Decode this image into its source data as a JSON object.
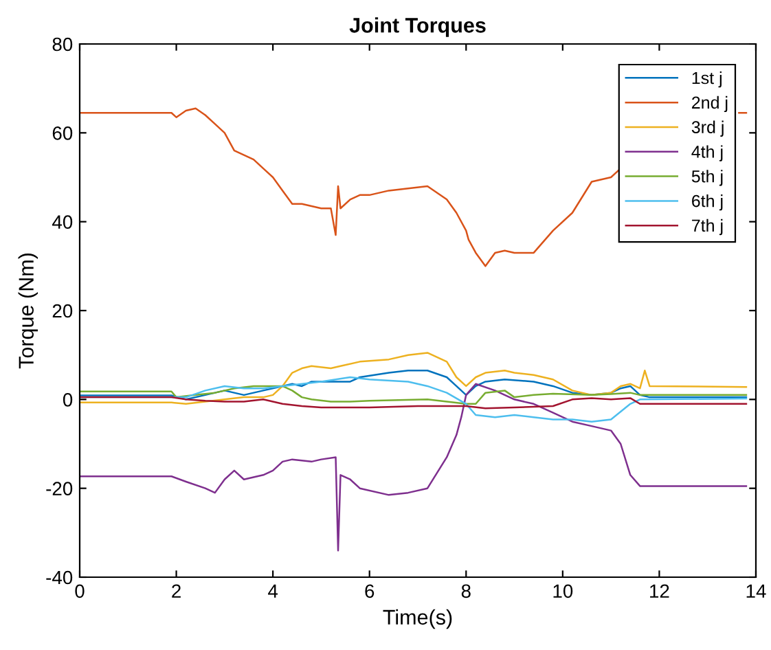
{
  "chart_data": {
    "type": "line",
    "title": "Joint Torques",
    "xlabel": "Time(s)",
    "ylabel": "Torque (Nm)",
    "xlim": [
      0,
      14
    ],
    "ylim": [
      -40,
      80
    ],
    "xticks": [
      0,
      2,
      4,
      6,
      8,
      10,
      12,
      14
    ],
    "yticks": [
      -40,
      -20,
      0,
      20,
      40,
      60,
      80
    ],
    "grid": false,
    "legend": "top right",
    "marker": "none",
    "line_style": "solid",
    "series": [
      {
        "name": "1st j",
        "color": "#0072bd",
        "x": [
          0,
          1.9,
          2.2,
          2.6,
          3.0,
          3.4,
          3.8,
          4.2,
          4.4,
          4.6,
          4.8,
          5.2,
          5.6,
          5.8,
          6.4,
          6.8,
          7.2,
          7.6,
          7.8,
          8.0,
          8.2,
          8.4,
          8.8,
          9.4,
          9.8,
          10.2,
          10.6,
          11.0,
          11.2,
          11.4,
          11.6,
          11.8,
          13.8
        ],
        "values": [
          0.9,
          0.9,
          0,
          1,
          2,
          1,
          2,
          3,
          3.5,
          3,
          4,
          4,
          4,
          5,
          6,
          6.5,
          6.5,
          5,
          3,
          1,
          3,
          4,
          4.5,
          4,
          3,
          1.5,
          1,
          1.5,
          2.5,
          3,
          1,
          0.5,
          0.5
        ]
      },
      {
        "name": "2nd j",
        "color": "#d95319",
        "x": [
          0,
          1.9,
          2.0,
          2.2,
          2.4,
          2.6,
          2.8,
          3.0,
          3.2,
          3.4,
          3.6,
          3.8,
          4.0,
          4.2,
          4.4,
          4.6,
          4.8,
          5.0,
          5.2,
          5.3,
          5.35,
          5.4,
          5.6,
          5.8,
          6.0,
          6.4,
          6.8,
          7.2,
          7.6,
          7.8,
          8.0,
          8.05,
          8.2,
          8.4,
          8.6,
          8.8,
          9.0,
          9.4,
          9.8,
          10.2,
          10.6,
          11.0,
          11.2,
          11.4,
          13.65,
          13.8
        ],
        "values": [
          64.5,
          64.5,
          63.5,
          65,
          65.5,
          64,
          62,
          60,
          56,
          55,
          54,
          52,
          50,
          47,
          44,
          44,
          43.5,
          43,
          43,
          37,
          48,
          43,
          45,
          46,
          46,
          47,
          47.5,
          48,
          45,
          42,
          38,
          36,
          33,
          30,
          33,
          33.5,
          33,
          33,
          38,
          42,
          49,
          50,
          52,
          null,
          64.5,
          64.5
        ]
      },
      {
        "name": "3rd j",
        "color": "#edb120",
        "x": [
          0,
          1.9,
          2.2,
          2.6,
          3.0,
          3.4,
          3.8,
          4.0,
          4.2,
          4.4,
          4.6,
          4.8,
          5.2,
          5.4,
          5.8,
          6.4,
          6.8,
          7.2,
          7.6,
          7.8,
          8.0,
          8.2,
          8.4,
          8.8,
          9.0,
          9.4,
          9.8,
          10.2,
          10.6,
          11.0,
          11.2,
          11.4,
          11.6,
          11.7,
          11.8,
          13.8
        ],
        "values": [
          -0.7,
          -0.7,
          -1,
          -0.5,
          0,
          0.5,
          0.5,
          1,
          3,
          6,
          7,
          7.5,
          7,
          7.5,
          8.5,
          9,
          10,
          10.5,
          8.5,
          5,
          3,
          5,
          6,
          6.5,
          6,
          5.5,
          4.5,
          2,
          1,
          1.5,
          3,
          3.5,
          2.5,
          6.5,
          3,
          2.8
        ]
      },
      {
        "name": "4th j",
        "color": "#7e2f8e",
        "x": [
          0,
          1.9,
          2.2,
          2.6,
          2.8,
          3.0,
          3.2,
          3.4,
          3.8,
          4.0,
          4.2,
          4.4,
          4.8,
          5.0,
          5.3,
          5.35,
          5.4,
          5.6,
          5.8,
          6.4,
          6.8,
          7.2,
          7.6,
          7.8,
          7.9,
          8.0,
          8.2,
          8.6,
          8.8,
          9.0,
          9.4,
          9.8,
          10.2,
          10.6,
          11.0,
          11.2,
          11.4,
          11.6,
          13.8
        ],
        "values": [
          -17.3,
          -17.3,
          -18.5,
          -20,
          -21,
          -18,
          -16,
          -18,
          -17,
          -16,
          -14,
          -13.5,
          -14,
          -13.5,
          -13,
          -34,
          -17,
          -18,
          -20,
          -21.5,
          -21,
          -20,
          -13,
          -8,
          -4,
          1,
          3.5,
          2,
          1,
          0,
          -1,
          -3,
          -5,
          -6,
          -7,
          -10,
          -17,
          -19.5,
          -19.5
        ]
      },
      {
        "name": "5th j",
        "color": "#77ac30",
        "x": [
          0,
          1.9,
          2.0,
          2.4,
          2.8,
          3.2,
          3.6,
          4.2,
          4.4,
          4.6,
          4.8,
          5.2,
          5.6,
          6.0,
          7.2,
          7.6,
          8.0,
          8.2,
          8.4,
          8.8,
          9.0,
          9.4,
          9.8,
          10.6,
          11.0,
          11.4,
          11.6,
          13.8
        ],
        "values": [
          1.8,
          1.8,
          0.5,
          1,
          1.5,
          2.5,
          3,
          3,
          2,
          0.5,
          0,
          -0.5,
          -0.5,
          -0.3,
          0,
          -0.5,
          -1,
          -1,
          1.5,
          2,
          0.5,
          1,
          1.3,
          1,
          1.2,
          1.5,
          1,
          1
        ]
      },
      {
        "name": "6th j",
        "color": "#4dbeee",
        "x": [
          0,
          1.9,
          2.2,
          2.6,
          3.0,
          3.4,
          3.8,
          4.2,
          4.6,
          5.0,
          5.6,
          6.0,
          6.8,
          7.2,
          7.6,
          8.0,
          8.2,
          8.6,
          9.0,
          9.4,
          9.8,
          10.2,
          10.6,
          11.0,
          11.4,
          11.6,
          13.8
        ],
        "values": [
          0.5,
          0.5,
          0.5,
          2,
          3,
          2.5,
          2.5,
          3,
          3.5,
          4,
          5,
          4.5,
          4,
          3,
          1.5,
          -1,
          -3.5,
          -4,
          -3.5,
          -4,
          -4.5,
          -4.5,
          -5,
          -4.5,
          -1,
          0,
          0.2
        ]
      },
      {
        "name": "7th j",
        "color": "#a2142f",
        "x": [
          0,
          1.9,
          2.2,
          2.6,
          3.0,
          3.4,
          3.8,
          4.2,
          4.6,
          5.0,
          6.0,
          7.0,
          8.0,
          8.4,
          9.0,
          9.8,
          10.2,
          10.6,
          11.0,
          11.4,
          11.6,
          13.8
        ],
        "values": [
          0.5,
          0.5,
          0,
          -0.3,
          -0.5,
          -0.5,
          0,
          -1,
          -1.5,
          -1.8,
          -1.8,
          -1.5,
          -1.5,
          -2,
          -1.8,
          -1.5,
          0,
          0.3,
          0,
          0.3,
          -1,
          -1
        ]
      }
    ]
  }
}
